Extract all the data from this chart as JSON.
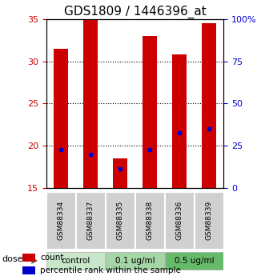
{
  "title": "GDS1809 / 1446396_at",
  "samples": [
    "GSM88334",
    "GSM88337",
    "GSM88335",
    "GSM88338",
    "GSM88336",
    "GSM88339"
  ],
  "count_values": [
    31.5,
    35.0,
    18.5,
    33.0,
    30.8,
    34.5
  ],
  "percentile_values": [
    19.5,
    19.0,
    17.2,
    19.5,
    21.5,
    22.0
  ],
  "ylim_left": [
    15,
    35
  ],
  "ylim_right": [
    0,
    100
  ],
  "yticks_left": [
    15,
    20,
    25,
    30,
    35
  ],
  "yticks_right": [
    0,
    25,
    50,
    75,
    100
  ],
  "ytick_labels_right": [
    "0",
    "25",
    "50",
    "75",
    "100%"
  ],
  "bar_color": "#cc0000",
  "dot_color": "#0000cc",
  "bar_width": 0.5,
  "groups": [
    {
      "label": "control",
      "indices": [
        0,
        1
      ]
    },
    {
      "label": "0.1 ug/ml",
      "indices": [
        2,
        3
      ]
    },
    {
      "label": "0.5 ug/ml",
      "indices": [
        4,
        5
      ]
    }
  ],
  "group_colors": [
    "#c8e6c9",
    "#a5d6a7",
    "#66bb6a"
  ],
  "sample_box_color": "#d0d0d0",
  "dose_label": "dose",
  "legend_count_label": "count",
  "legend_percentile_label": "percentile rank within the sample",
  "title_fontsize": 11,
  "axis_color_left": "#cc0000",
  "axis_color_right": "#0000cc"
}
